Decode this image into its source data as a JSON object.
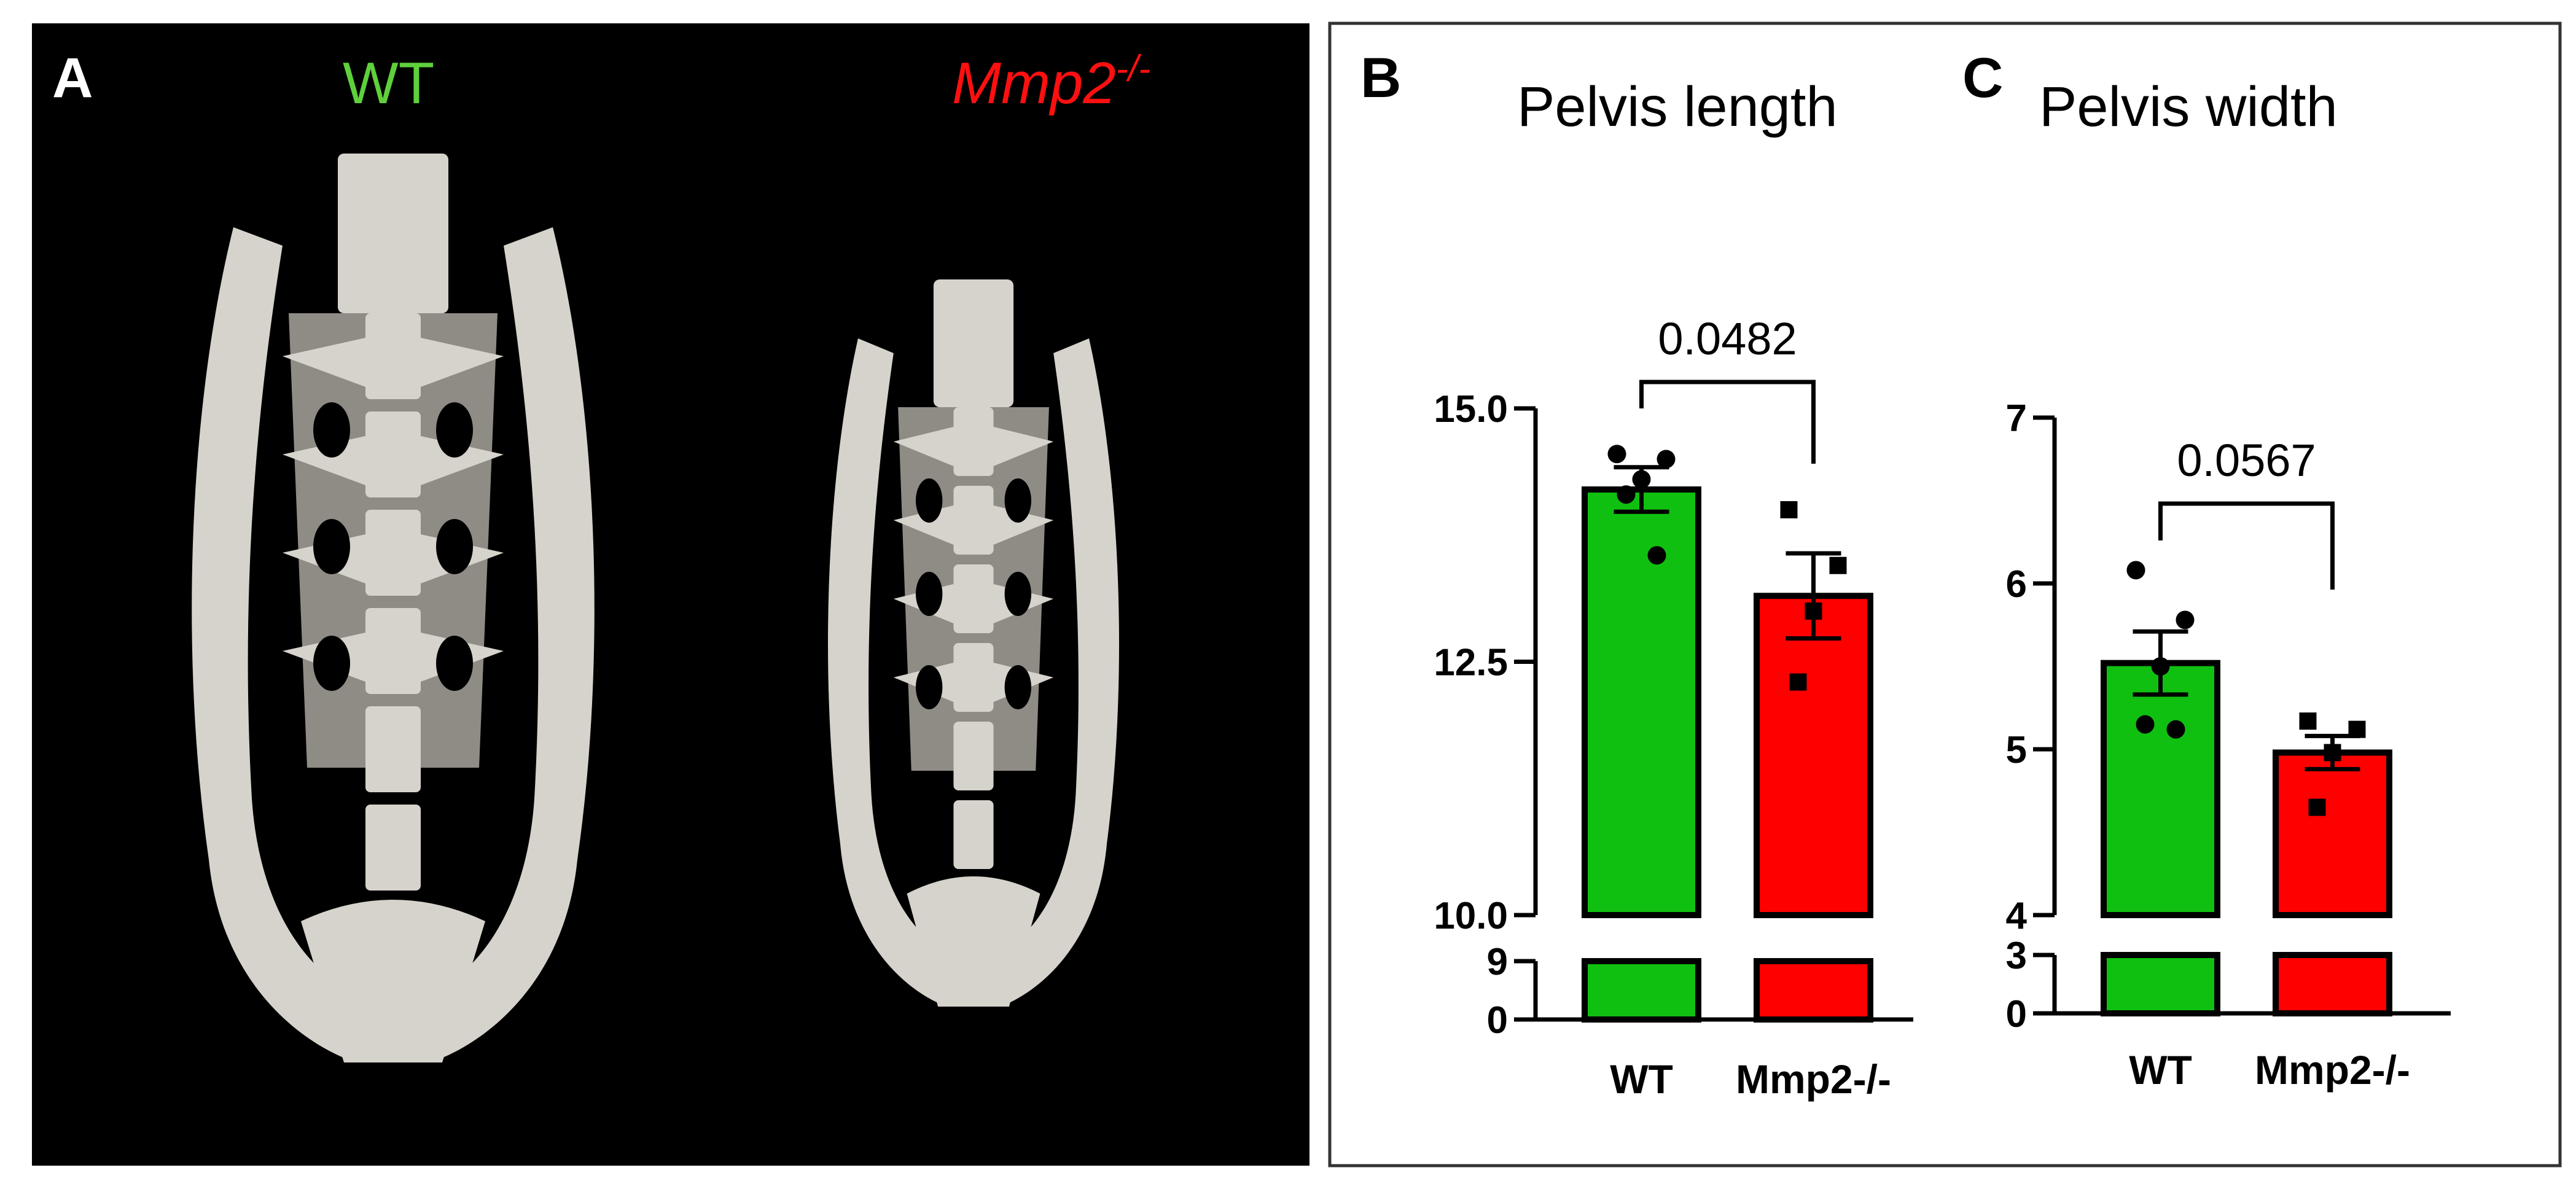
{
  "panel_a": {
    "letter": "A",
    "label_wt": "WT",
    "label_ko_base": "Mmp2",
    "label_ko_sup": "-/-"
  },
  "panel_b": {
    "letter": "B"
  },
  "panel_c": {
    "letter": "C"
  },
  "colors": {
    "wt": "#10c010",
    "ko": "#ff0000",
    "wt_label": "#5fd03c",
    "ko_label": "#ff1010",
    "bone": "#d6d3cc",
    "panel_bg": "#000000"
  },
  "chart_data": [
    {
      "type": "bar",
      "title": "Pelvis length",
      "categories": [
        "WT",
        "Mmp2-/-"
      ],
      "values": [
        14.2,
        13.15
      ],
      "sem": [
        0.22,
        0.42
      ],
      "points": [
        [
          14.55,
          14.5,
          14.3,
          14.15,
          13.55
        ],
        [
          14.0,
          13.45,
          13.0,
          12.3
        ]
      ],
      "upper_ticks": [
        "10.0",
        "12.5",
        "15.0"
      ],
      "upper_ylim": [
        10.0,
        15.0
      ],
      "lower_ticks": [
        "0",
        "9"
      ],
      "pvalue": "0.0482",
      "axis_break": true
    },
    {
      "type": "bar",
      "title": "Pelvis width",
      "categories": [
        "WT",
        "Mmp2-/-"
      ],
      "values": [
        5.52,
        4.98
      ],
      "sem": [
        0.19,
        0.1
      ],
      "points": [
        [
          6.08,
          5.78,
          5.5,
          5.15,
          5.12
        ],
        [
          5.17,
          5.12,
          4.98,
          4.65
        ]
      ],
      "upper_ticks": [
        "4",
        "5",
        "6",
        "7"
      ],
      "upper_ylim": [
        4,
        7
      ],
      "lower_ticks": [
        "0",
        "3"
      ],
      "pvalue": "0.0567",
      "axis_break": true
    }
  ]
}
